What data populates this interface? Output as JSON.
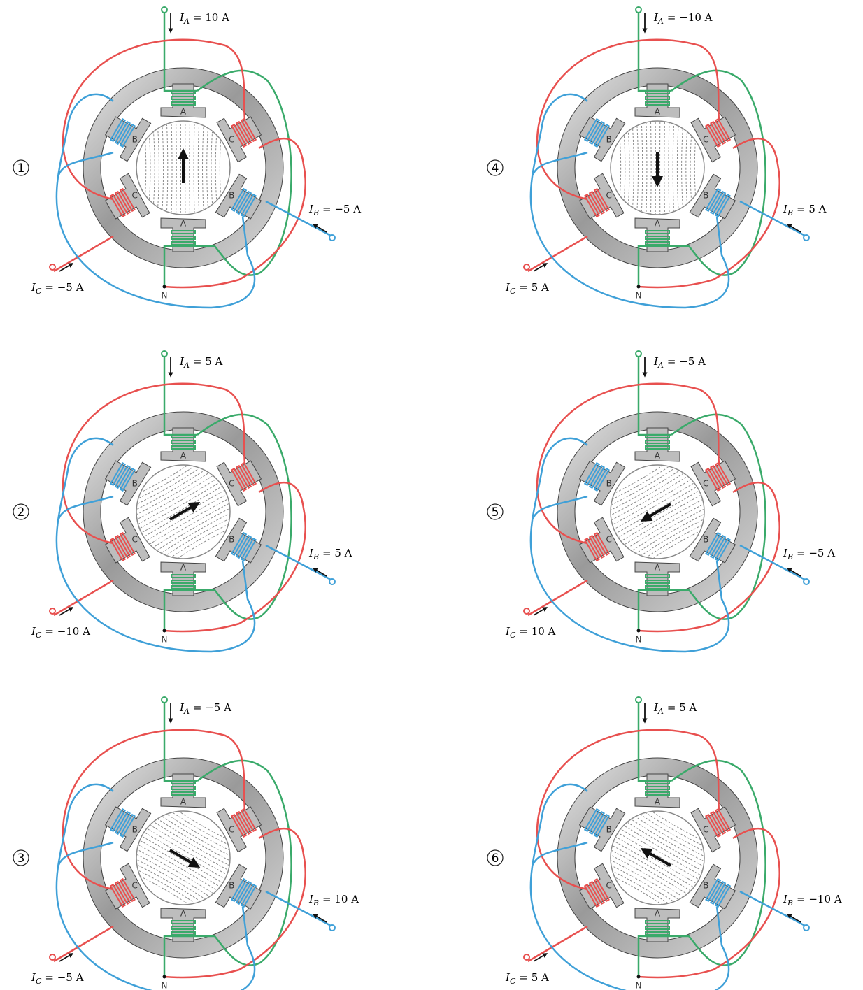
{
  "steps": [
    {
      "label": "1",
      "ia": {
        "symbol": "I",
        "subscript": "A",
        "text": "= 10 A"
      },
      "ib": {
        "symbol": "I",
        "subscript": "B",
        "text": "= −5 A"
      },
      "ic": {
        "symbol": "I",
        "subscript": "C",
        "text": "= −5 A"
      }
    },
    {
      "label": "2",
      "ia": {
        "symbol": "I",
        "subscript": "A",
        "text": "= 5 A"
      },
      "ib": {
        "symbol": "I",
        "subscript": "B",
        "text": "= 5 A"
      },
      "ic": {
        "symbol": "I",
        "subscript": "C",
        "text": "= −10 A"
      }
    },
    {
      "label": "3",
      "ia": {
        "symbol": "I",
        "subscript": "A",
        "text": "= −5 A"
      },
      "ib": {
        "symbol": "I",
        "subscript": "B",
        "text": "= 10 A"
      },
      "ic": {
        "symbol": "I",
        "subscript": "C",
        "text": "= −5 A"
      }
    },
    {
      "label": "4",
      "ia": {
        "symbol": "I",
        "subscript": "A",
        "text": "= −10 A"
      },
      "ib": {
        "symbol": "I",
        "subscript": "B",
        "text": "= 5 A"
      },
      "ic": {
        "symbol": "I",
        "subscript": "C",
        "text": "= 5 A"
      }
    },
    {
      "label": "5",
      "ia": {
        "symbol": "I",
        "subscript": "A",
        "text": "= −5 A"
      },
      "ib": {
        "symbol": "I",
        "subscript": "B",
        "text": "= −5 A"
      },
      "ic": {
        "symbol": "I",
        "subscript": "C",
        "text": "= 10 A"
      }
    },
    {
      "label": "6",
      "ia": {
        "symbol": "I",
        "subscript": "A",
        "text": "= 5 A"
      },
      "ib": {
        "symbol": "I",
        "subscript": "B",
        "text": "= −10 A"
      },
      "ic": {
        "symbol": "I",
        "subscript": "C",
        "text": "= 5 A"
      }
    }
  ],
  "poles": {
    "a": "A",
    "b": "B",
    "c": "C"
  },
  "neutral": "N"
}
